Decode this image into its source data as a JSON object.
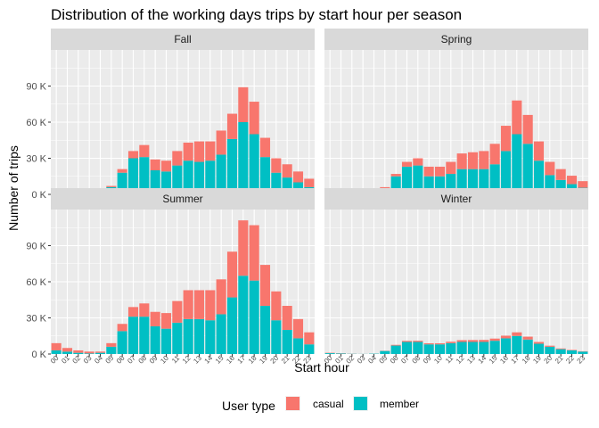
{
  "chart_data": {
    "type": "bar",
    "stacked": true,
    "title": "Distribution of the working days trips by start hour per season",
    "xlabel": "Start hour",
    "ylabel": "Number of trips",
    "ylim": [
      0,
      120000
    ],
    "yticks": [
      0,
      30000,
      60000,
      90000
    ],
    "ytick_labels": [
      "0 K",
      "30 K",
      "60 K",
      "90 K"
    ],
    "categories": [
      "00",
      "01",
      "02",
      "03",
      "04",
      "05",
      "06",
      "07",
      "08",
      "09",
      "10",
      "11",
      "12",
      "13",
      "14",
      "15",
      "16",
      "17",
      "18",
      "19",
      "20",
      "21",
      "22",
      "23"
    ],
    "legend": {
      "title": "User type",
      "position": "bottom",
      "items": [
        {
          "label": "casual",
          "color": "#F8766D"
        },
        {
          "label": "member",
          "color": "#00BFC4"
        }
      ]
    },
    "grid": true,
    "facets": [
      {
        "name": "Fall",
        "member": [
          2000,
          1500,
          700,
          400,
          1000,
          6000,
          18000,
          30000,
          31000,
          20000,
          19000,
          24000,
          28000,
          27000,
          28000,
          33000,
          46000,
          60000,
          50000,
          31000,
          18000,
          14000,
          10000,
          6000
        ],
        "casual": [
          2500,
          1800,
          1100,
          600,
          400,
          1000,
          3000,
          6000,
          10000,
          9000,
          9000,
          12000,
          15000,
          17000,
          16000,
          20000,
          21000,
          29000,
          27000,
          16000,
          12000,
          11000,
          9000,
          7000
        ]
      },
      {
        "name": "Spring",
        "member": [
          1500,
          1000,
          500,
          300,
          800,
          5000,
          15000,
          23000,
          24000,
          15000,
          15000,
          17000,
          21000,
          21000,
          21000,
          25000,
          36000,
          50000,
          42000,
          28000,
          16000,
          12000,
          8500,
          5500
        ],
        "casual": [
          3000,
          2000,
          1200,
          700,
          500,
          1000,
          2000,
          4000,
          6000,
          8000,
          8000,
          10000,
          13000,
          14000,
          15000,
          17000,
          21000,
          28000,
          24000,
          16000,
          11000,
          9000,
          7000,
          5500
        ]
      },
      {
        "name": "Summer",
        "member": [
          3000,
          2000,
          1000,
          500,
          1000,
          6000,
          19000,
          31000,
          31000,
          23000,
          21000,
          26000,
          29000,
          29000,
          28000,
          33000,
          47000,
          65000,
          61000,
          40000,
          28000,
          20000,
          13000,
          8000
        ],
        "casual": [
          6000,
          3000,
          2000,
          1500,
          1000,
          3000,
          6000,
          8000,
          11000,
          12000,
          13000,
          18000,
          24000,
          24000,
          25000,
          29000,
          38000,
          46000,
          46000,
          34000,
          24000,
          20000,
          16000,
          10000
        ]
      },
      {
        "name": "Winter",
        "member": [
          700,
          400,
          200,
          100,
          300,
          2500,
          7000,
          10000,
          10000,
          8000,
          8000,
          9000,
          10000,
          10000,
          10000,
          11000,
          13000,
          15000,
          12000,
          8500,
          6000,
          4000,
          3000,
          2000
        ],
        "casual": [
          300,
          200,
          100,
          50,
          50,
          200,
          600,
          900,
          1000,
          900,
          900,
          1200,
          1500,
          1600,
          1700,
          1800,
          2200,
          3000,
          2400,
          1500,
          900,
          600,
          400,
          300
        ]
      }
    ]
  }
}
